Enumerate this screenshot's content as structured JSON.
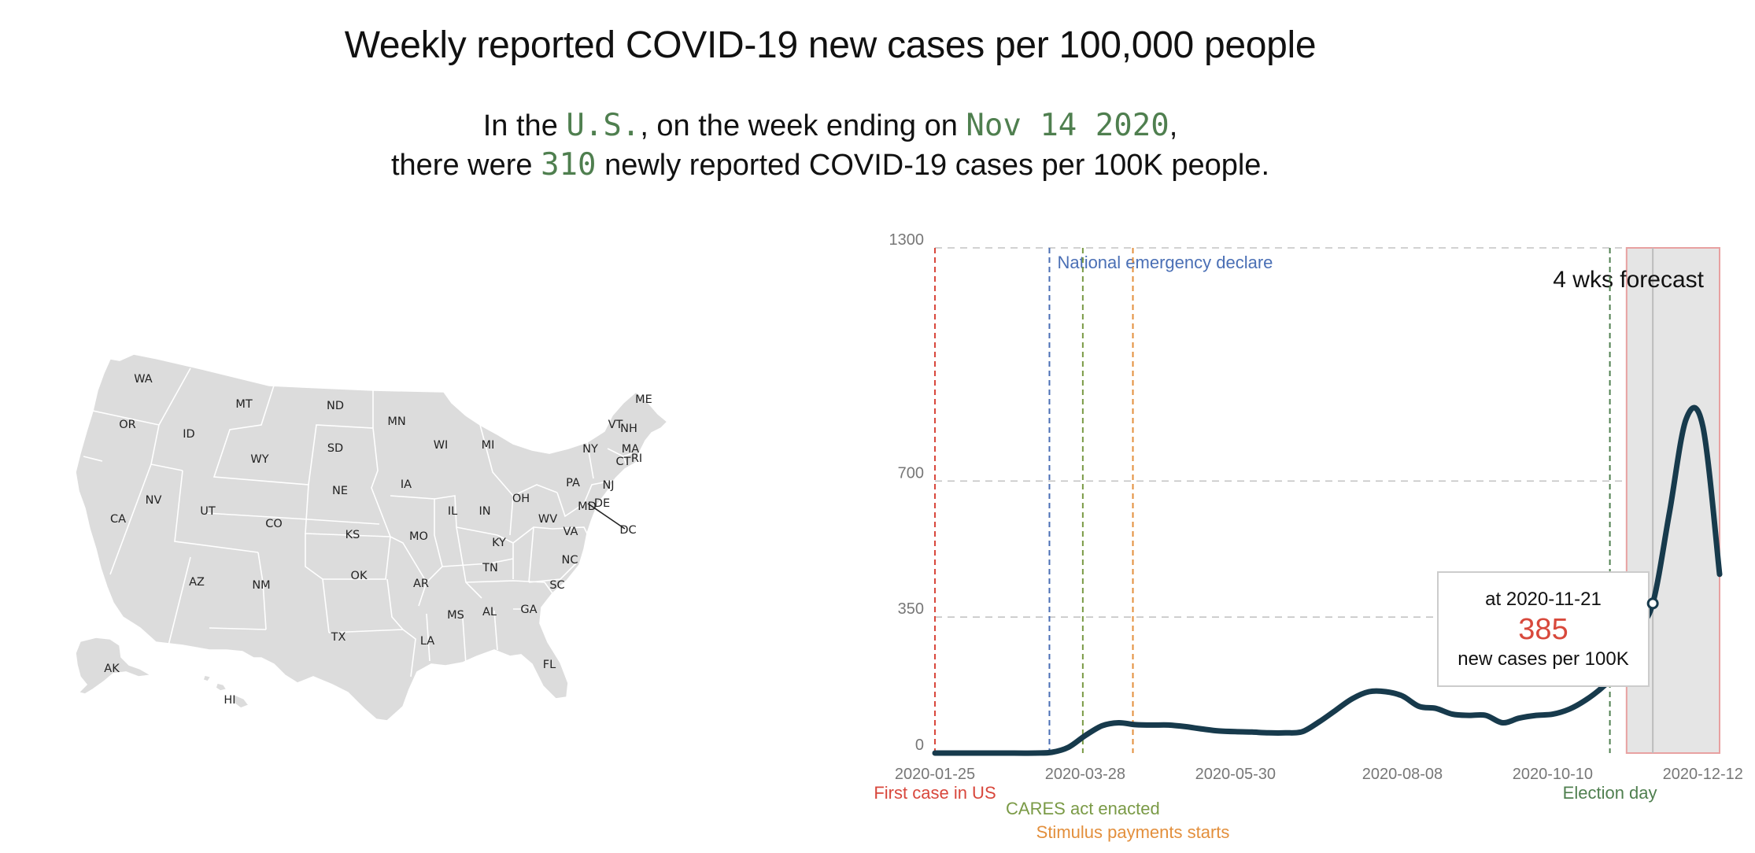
{
  "header": {
    "title": "Weekly reported COVID-19 new cases per 100,000 people"
  },
  "summary": {
    "prefix": "In the ",
    "region": "U.S.",
    "mid": ", on the week ending on ",
    "week": "Nov 14 2020",
    "comma": ",",
    "line2_prefix": "there were ",
    "value": "310",
    "line2_suffix": " newly reported COVID-19 cases per 100K people."
  },
  "map": {
    "fill_color": "#dcdcdc",
    "state_labels": [
      "WA",
      "OR",
      "CA",
      "ID",
      "NV",
      "MT",
      "WY",
      "UT",
      "AZ",
      "CO",
      "NM",
      "ND",
      "SD",
      "NE",
      "KS",
      "OK",
      "TX",
      "MN",
      "IA",
      "MO",
      "AR",
      "LA",
      "WI",
      "IL",
      "MI",
      "IN",
      "OH",
      "KY",
      "TN",
      "MS",
      "AL",
      "GA",
      "FL",
      "SC",
      "NC",
      "VA",
      "WV",
      "PA",
      "NY",
      "NJ",
      "MD",
      "DE",
      "DC",
      "CT",
      "RI",
      "MA",
      "VT",
      "NH",
      "ME",
      "AK",
      "HI"
    ]
  },
  "chart_data": {
    "type": "line",
    "ylim": [
      0,
      1300
    ],
    "y_ticks": [
      "0",
      "350",
      "700",
      "1300"
    ],
    "x_ticks": [
      "2020-01-25",
      "2020-03-28",
      "2020-05-30",
      "2020-08-08",
      "2020-10-10",
      "2020-12-12"
    ],
    "xlim": [
      "2020-01-25",
      "2020-12-19"
    ],
    "line_color": "#173a4c",
    "series": [
      {
        "x": [
          "2020-01-25",
          "2020-02-08",
          "2020-02-22",
          "2020-03-07",
          "2020-03-14",
          "2020-03-21",
          "2020-03-28",
          "2020-04-04",
          "2020-04-11",
          "2020-04-18",
          "2020-04-25",
          "2020-05-02",
          "2020-05-09",
          "2020-05-16",
          "2020-05-23",
          "2020-05-30",
          "2020-06-06",
          "2020-06-13",
          "2020-06-20",
          "2020-06-27",
          "2020-07-04",
          "2020-07-11",
          "2020-07-18",
          "2020-07-25",
          "2020-08-01",
          "2020-08-08",
          "2020-08-15",
          "2020-08-22",
          "2020-08-29",
          "2020-09-05",
          "2020-09-12",
          "2020-09-19",
          "2020-09-26",
          "2020-10-03",
          "2020-10-10",
          "2020-10-17",
          "2020-10-24",
          "2020-10-31",
          "2020-11-07",
          "2020-11-14",
          "2020-11-21",
          "2020-11-28",
          "2020-12-05",
          "2020-12-12",
          "2020-12-19"
        ],
        "values": [
          0,
          0,
          0,
          0,
          2,
          15,
          45,
          70,
          78,
          73,
          72,
          72,
          68,
          62,
          57,
          55,
          54,
          52,
          52,
          55,
          80,
          110,
          140,
          158,
          158,
          147,
          120,
          115,
          100,
          97,
          97,
          78,
          90,
          97,
          100,
          113,
          137,
          170,
          215,
          310,
          385,
          620,
          860,
          840,
          460
        ]
      }
    ],
    "events": [
      {
        "date": "2020-01-25",
        "label": "First case in US",
        "color": "#d8473c"
      },
      {
        "date": "2020-03-13",
        "label": "National emergency declare",
        "color": "#4a6fb5"
      },
      {
        "date": "2020-03-27",
        "label": "CARES act enacted",
        "color": "#7a9a46"
      },
      {
        "date": "2020-04-17",
        "label": "Stimulus payments starts",
        "color": "#e38f3c"
      },
      {
        "date": "2020-11-03",
        "label": "Election day",
        "color": "#4f7f4f"
      }
    ],
    "forecast": {
      "start": "2020-11-10",
      "end": "2020-12-19",
      "label": "4 wks forecast",
      "band_color": "#e5e5e5",
      "border_color": "#e8a1a1"
    },
    "tooltip": {
      "date": "2020-11-21",
      "line1": "at 2020-11-21",
      "value": "385",
      "line3": "new cases per 100K",
      "value_color": "#d8493c"
    }
  }
}
